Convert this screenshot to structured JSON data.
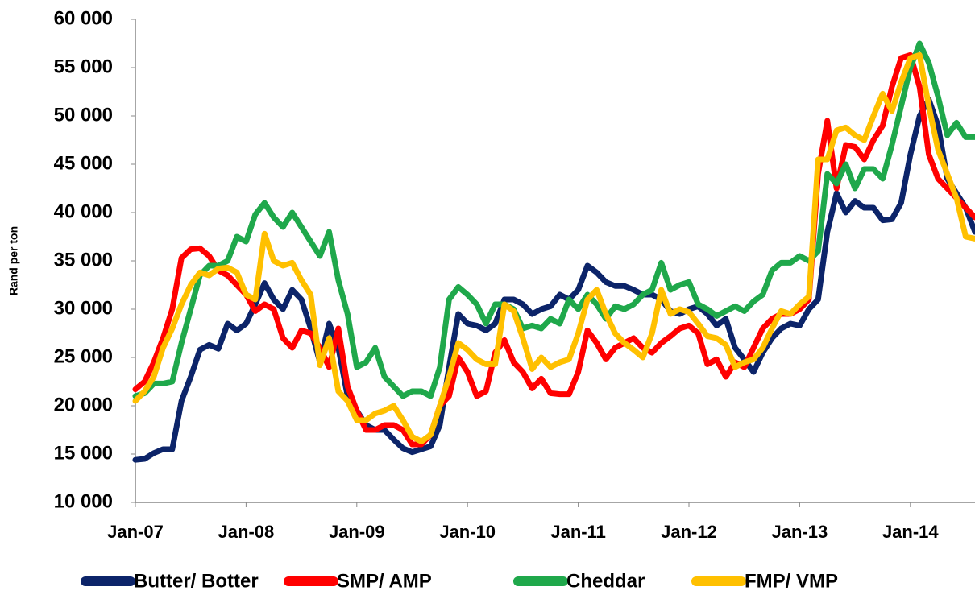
{
  "chart_data": {
    "type": "line",
    "y_label": "Rand per ton",
    "categories": [
      "Jan-07",
      null,
      null,
      null,
      null,
      null,
      null,
      null,
      null,
      null,
      null,
      null,
      "Jan-08",
      null,
      null,
      null,
      null,
      null,
      null,
      null,
      null,
      null,
      null,
      null,
      "Jan-09",
      null,
      null,
      null,
      null,
      null,
      null,
      null,
      null,
      null,
      null,
      null,
      "Jan-10",
      null,
      null,
      null,
      null,
      null,
      null,
      null,
      null,
      null,
      null,
      null,
      "Jan-11",
      null,
      null,
      null,
      null,
      null,
      null,
      null,
      null,
      null,
      null,
      null,
      "Jan-12",
      null,
      null,
      null,
      null,
      null,
      null,
      null,
      null,
      null,
      null,
      null,
      "Jan-13",
      null,
      null,
      null,
      null,
      null,
      null,
      null,
      null,
      null,
      null,
      null,
      "Jan-14",
      null,
      null,
      null,
      null,
      null,
      null,
      null
    ],
    "ylim": [
      10000,
      60000
    ],
    "yticks": [
      {
        "value": 10000,
        "label": "10 000"
      },
      {
        "value": 15000,
        "label": "15 000"
      },
      {
        "value": 20000,
        "label": "20 000"
      },
      {
        "value": 25000,
        "label": "25 000"
      },
      {
        "value": 30000,
        "label": "30 000"
      },
      {
        "value": 35000,
        "label": "35 000"
      },
      {
        "value": 40000,
        "label": "40 000"
      },
      {
        "value": 45000,
        "label": "45 000"
      },
      {
        "value": 50000,
        "label": "50 000"
      },
      {
        "value": 55000,
        "label": "55 000"
      },
      {
        "value": 60000,
        "label": "60 000"
      }
    ],
    "grid": false,
    "legend": "bottom",
    "series": [
      {
        "name": "Butter/ Botter",
        "color": "#0c2469",
        "values": [
          14400,
          14500,
          15100,
          15500,
          15500,
          20500,
          23000,
          25800,
          26300,
          25900,
          28500,
          27800,
          28500,
          30500,
          32700,
          31000,
          30000,
          32000,
          31000,
          28000,
          24500,
          28500,
          26000,
          21000,
          19500,
          18000,
          17500,
          17500,
          16500,
          15600,
          15200,
          15500,
          15800,
          18000,
          24000,
          29500,
          28500,
          28300,
          27800,
          28500,
          31000,
          31000,
          30500,
          29500,
          30000,
          30300,
          31500,
          31000,
          32000,
          34500,
          33800,
          32800,
          32400,
          32400,
          32000,
          31500,
          31500,
          31000,
          29800,
          29500,
          30000,
          30300,
          29500,
          28300,
          29000,
          26000,
          24800,
          23500,
          25500,
          27000,
          28000,
          28500,
          28300,
          30000,
          31000,
          38000,
          42000,
          40000,
          41200,
          40500,
          40500,
          39200,
          39300,
          41000,
          46000,
          50000,
          51700,
          49000,
          43500,
          42000,
          40500,
          38000
        ]
      },
      {
        "name": "SMP/ AMP",
        "color": "#ff0000",
        "values": [
          21700,
          22500,
          24500,
          27000,
          30000,
          35300,
          36200,
          36300,
          35500,
          34000,
          33500,
          32500,
          31500,
          29800,
          30500,
          30000,
          27000,
          26000,
          27800,
          27500,
          26000,
          24000,
          28000,
          22000,
          19500,
          17500,
          17500,
          18000,
          18000,
          17500,
          16000,
          16000,
          17000,
          20000,
          21000,
          25000,
          23500,
          21000,
          21500,
          25500,
          26800,
          24500,
          23500,
          21800,
          22800,
          21300,
          21200,
          21200,
          23500,
          27800,
          26500,
          24800,
          26000,
          26500,
          27000,
          26000,
          25500,
          26500,
          27200,
          28000,
          28300,
          27500,
          24300,
          24800,
          23000,
          24500,
          24000,
          26000,
          28000,
          29000,
          29500,
          29500,
          30000,
          31000,
          44000,
          49500,
          42500,
          47000,
          46800,
          45500,
          47500,
          49000,
          53000,
          56000,
          56300,
          53000,
          46000,
          43500,
          42500,
          41500,
          40500,
          39500
        ]
      },
      {
        "name": "Cheddar",
        "color": "#1fa84b",
        "values": [
          21000,
          21300,
          22300,
          22300,
          22500,
          26500,
          30000,
          33500,
          34500,
          34500,
          35000,
          37500,
          37000,
          39800,
          41000,
          39500,
          38500,
          40000,
          38500,
          37000,
          35500,
          38000,
          33000,
          29500,
          24000,
          24500,
          26000,
          23000,
          22000,
          21000,
          21500,
          21500,
          21000,
          24000,
          31000,
          32300,
          31500,
          30500,
          28500,
          30500,
          30500,
          30000,
          28000,
          28300,
          28000,
          29000,
          28500,
          31000,
          30000,
          31500,
          30500,
          29000,
          30300,
          30000,
          30500,
          31500,
          32000,
          34800,
          32000,
          32500,
          32800,
          30500,
          30000,
          29300,
          29800,
          30300,
          29800,
          30800,
          31500,
          34000,
          34800,
          34800,
          35500,
          35000,
          36000,
          44000,
          43000,
          45000,
          42500,
          44500,
          44500,
          43500,
          47000,
          51000,
          55000,
          57500,
          55500,
          52000,
          48000,
          49300,
          47800,
          47800
        ]
      },
      {
        "name": "FMP/ VMP",
        "color": "#ffc000",
        "values": [
          20500,
          21500,
          23000,
          26000,
          28000,
          30500,
          32500,
          33800,
          33500,
          34200,
          34300,
          33800,
          31500,
          31000,
          37800,
          35000,
          34500,
          34800,
          33000,
          31500,
          24200,
          27000,
          21500,
          20500,
          18500,
          18500,
          19200,
          19500,
          20000,
          18500,
          16800,
          16300,
          17000,
          20000,
          23000,
          26500,
          25800,
          24800,
          24300,
          24300,
          30500,
          29800,
          27000,
          23800,
          25000,
          24000,
          24500,
          24800,
          27500,
          31000,
          32000,
          29500,
          27500,
          26500,
          25800,
          25000,
          27500,
          32000,
          29500,
          30000,
          29700,
          28500,
          27200,
          27000,
          26300,
          24000,
          24500,
          24800,
          26000,
          28000,
          29800,
          29500,
          30500,
          31300,
          45500,
          45500,
          48500,
          48800,
          48000,
          47500,
          50000,
          52300,
          50500,
          53500,
          56000,
          56300,
          51000,
          46500,
          44000,
          41500,
          37500,
          37300
        ]
      }
    ]
  }
}
